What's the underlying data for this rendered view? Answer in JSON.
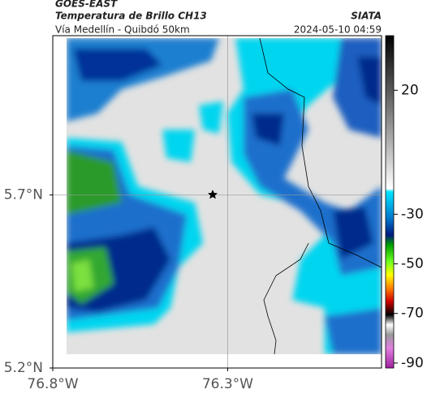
{
  "header": {
    "source": "GOES-EAST",
    "product": "Temperatura de Brillo CH13",
    "route": "Vía Medellín - Quibdó 50km",
    "agency": "SIATA",
    "datetime": "2024-05-10 04:59"
  },
  "map": {
    "xlim": [
      -76.8,
      -75.86
    ],
    "ylim": [
      5.2,
      6.16
    ],
    "xticks": [
      {
        "value": -76.8,
        "label": "76.8°W"
      },
      {
        "value": -76.3,
        "label": "76.3°W"
      }
    ],
    "yticks": [
      {
        "value": 5.7,
        "label": "5.7°N"
      },
      {
        "value": 5.2,
        "label": "5.2°N"
      }
    ],
    "grid": true
  },
  "colorbar": {
    "lim": [
      -92,
      42
    ],
    "ticks": [
      20,
      -30,
      -50,
      -70,
      -90
    ]
  }
}
